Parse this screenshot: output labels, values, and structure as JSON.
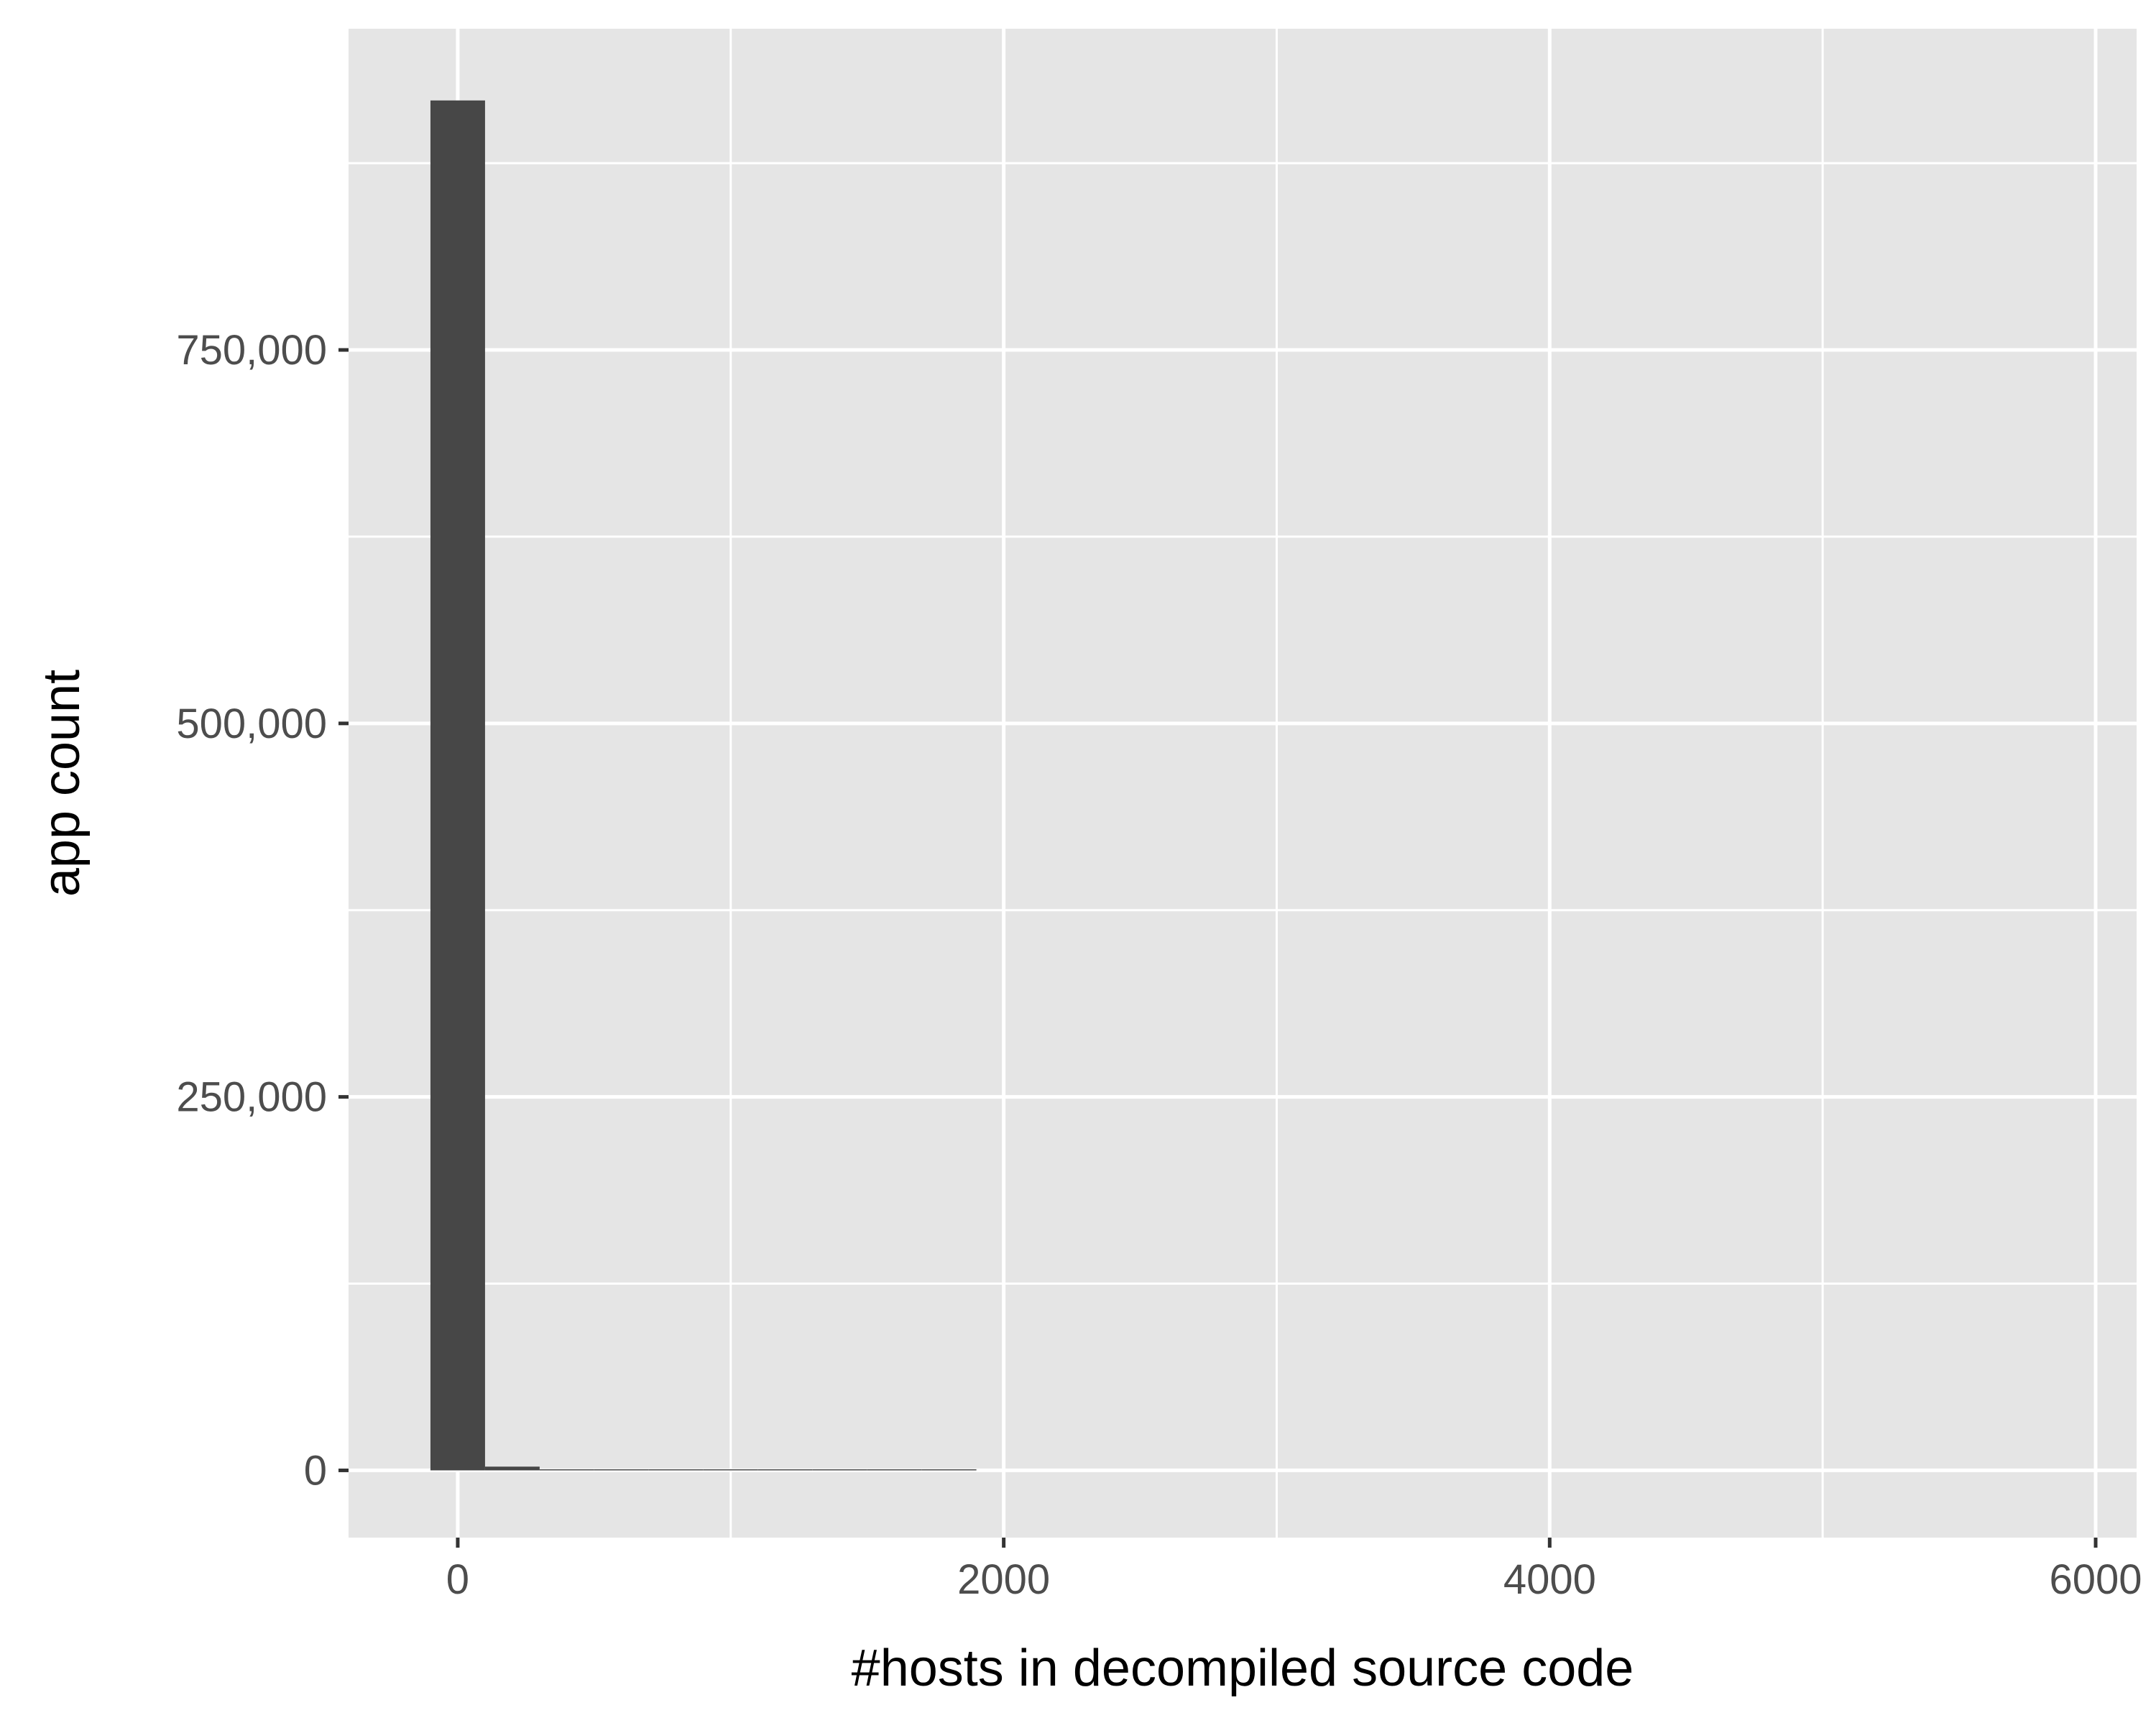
{
  "chart_data": {
    "type": "histogram",
    "title": "",
    "xlabel": "#hosts in decompiled source code",
    "ylabel": "app count",
    "xlim": [
      -400,
      6150
    ],
    "ylim": [
      -45000,
      965000
    ],
    "x_ticks": [
      {
        "value": 0,
        "label": "0"
      },
      {
        "value": 2000,
        "label": "2000"
      },
      {
        "value": 4000,
        "label": "4000"
      },
      {
        "value": 6000,
        "label": "6000"
      }
    ],
    "y_ticks": [
      {
        "value": 0,
        "label": "0"
      },
      {
        "value": 250000,
        "label": "250,000"
      },
      {
        "value": 500000,
        "label": "500,000"
      },
      {
        "value": 750000,
        "label": "750,000"
      }
    ],
    "x_minor_gridlines": [
      1000,
      3000,
      5000
    ],
    "y_minor_gridlines": [
      125000,
      375000,
      625000,
      875000
    ],
    "grid": true,
    "legend": "none",
    "bins": [
      {
        "x0": -100,
        "x1": 100,
        "count": 917000
      },
      {
        "x0": 100,
        "x1": 300,
        "count": 2500
      },
      {
        "x0": 300,
        "x1": 500,
        "count": 600
      },
      {
        "x0": 500,
        "x1": 700,
        "count": 200
      },
      {
        "x0": 700,
        "x1": 900,
        "count": 80
      },
      {
        "x0": 900,
        "x1": 1100,
        "count": 40
      },
      {
        "x0": 1100,
        "x1": 1300,
        "count": 20
      },
      {
        "x0": 1300,
        "x1": 1500,
        "count": 10
      },
      {
        "x0": 1500,
        "x1": 1700,
        "count": 5
      },
      {
        "x0": 1700,
        "x1": 1900,
        "count": 3
      }
    ],
    "colors": {
      "panel": "#e5e5e5",
      "grid": "#ffffff",
      "bar": "#474747",
      "tick": "#333333"
    }
  }
}
